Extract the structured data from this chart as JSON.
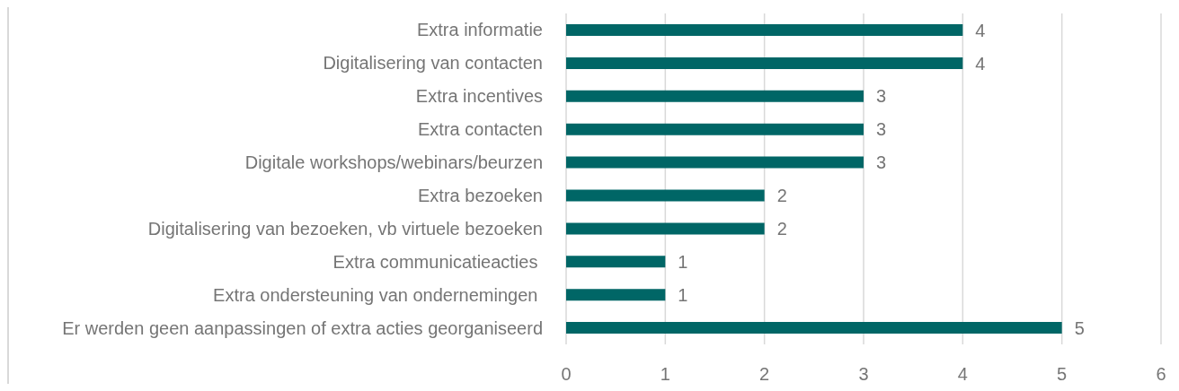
{
  "chart_data": {
    "type": "bar",
    "orientation": "horizontal",
    "categories": [
      "Extra informatie",
      "Digitalisering van contacten",
      "Extra incentives",
      "Extra contacten",
      "Digitale workshops/webinars/beurzen",
      "Extra bezoeken",
      "Digitalisering van bezoeken, vb virtuele bezoeken",
      "Extra communicatieacties ",
      "Extra ondersteuning van ondernemingen ",
      "Er werden geen aanpassingen of extra acties georganiseerd"
    ],
    "values": [
      4,
      4,
      3,
      3,
      3,
      2,
      2,
      1,
      1,
      5
    ],
    "color": "#006666",
    "xlim": [
      0,
      6
    ],
    "xticks": [
      0,
      1,
      2,
      3,
      4,
      5,
      6
    ],
    "grid": "x",
    "data_labels": true
  }
}
